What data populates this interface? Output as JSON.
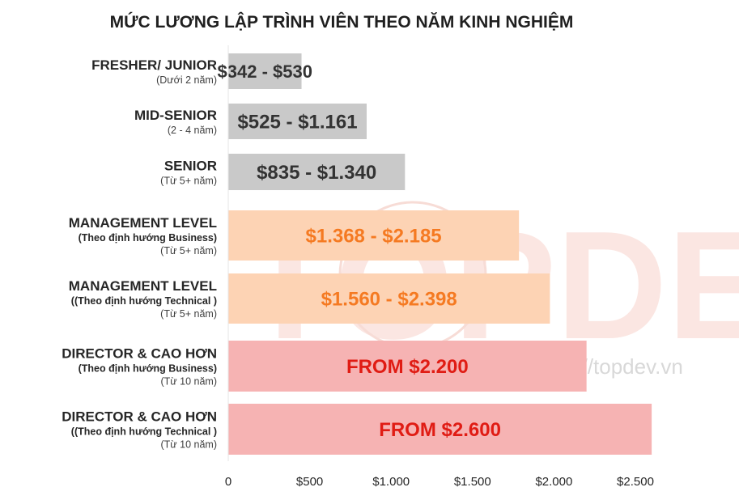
{
  "watermark": {
    "brand": "TOPDEV",
    "url": "https://topdev.vn"
  },
  "chart_data": {
    "type": "bar",
    "orientation": "horizontal",
    "title": "MỨC LƯƠNG LẬP TRÌNH VIÊN THEO NĂM KINH NGHIỆM",
    "xlabel": "",
    "ylabel": "",
    "xlim": [
      0,
      2500
    ],
    "x_ticks": [
      0,
      500,
      1000,
      1500,
      2000,
      2500
    ],
    "x_tick_labels": [
      "0",
      "$500",
      "$1.000",
      "$1.500",
      "$2.000",
      "$2.500"
    ],
    "grid": false,
    "legend": "none",
    "categories": [
      {
        "main": "FRESHER/ JUNIOR",
        "sub_bold": "",
        "sub": "(Dưới 2 năm)",
        "value": 450,
        "label": "$342 - $530",
        "bar_color": "#c9c9c9",
        "label_color": "#333333"
      },
      {
        "main": "MID-SENIOR",
        "sub_bold": "",
        "sub": "(2 - 4 năm)",
        "value": 850,
        "label": "$525 - $1.161",
        "bar_color": "#c9c9c9",
        "label_color": "#333333"
      },
      {
        "main": "SENIOR",
        "sub_bold": "",
        "sub": "(Từ 5+ năm)",
        "value": 1085,
        "label": "$835 - $1.340",
        "bar_color": "#c9c9c9",
        "label_color": "#333333"
      },
      {
        "main": "MANAGEMENT LEVEL",
        "sub_bold": "(Theo định hướng Business)",
        "sub": "(Từ 5+ năm)",
        "value": 1785,
        "label": "$1.368 - $2.185",
        "bar_color": "#fdd3b4",
        "label_color": "#f57a22"
      },
      {
        "main": "MANAGEMENT LEVEL",
        "sub_bold": "((Theo định hướng Technical )",
        "sub": "(Từ 5+ năm)",
        "value": 1975,
        "label": "$1.560 - $2.398",
        "bar_color": "#fdd3b4",
        "label_color": "#f57a22"
      },
      {
        "main": "DIRECTOR & CAO HƠN",
        "sub_bold": "(Theo định hướng Business)",
        "sub": "(Từ 10 năm)",
        "value": 2200,
        "label": "FROM $2.200",
        "bar_color": "#f6b3b3",
        "label_color": "#e01c14"
      },
      {
        "main": "DIRECTOR & CAO HƠN",
        "sub_bold": "((Theo định hướng Technical )",
        "sub": "(Từ 10 năm)",
        "value": 2600,
        "label": "FROM $2.600",
        "bar_color": "#f6b3b3",
        "label_color": "#e01c14"
      }
    ]
  }
}
